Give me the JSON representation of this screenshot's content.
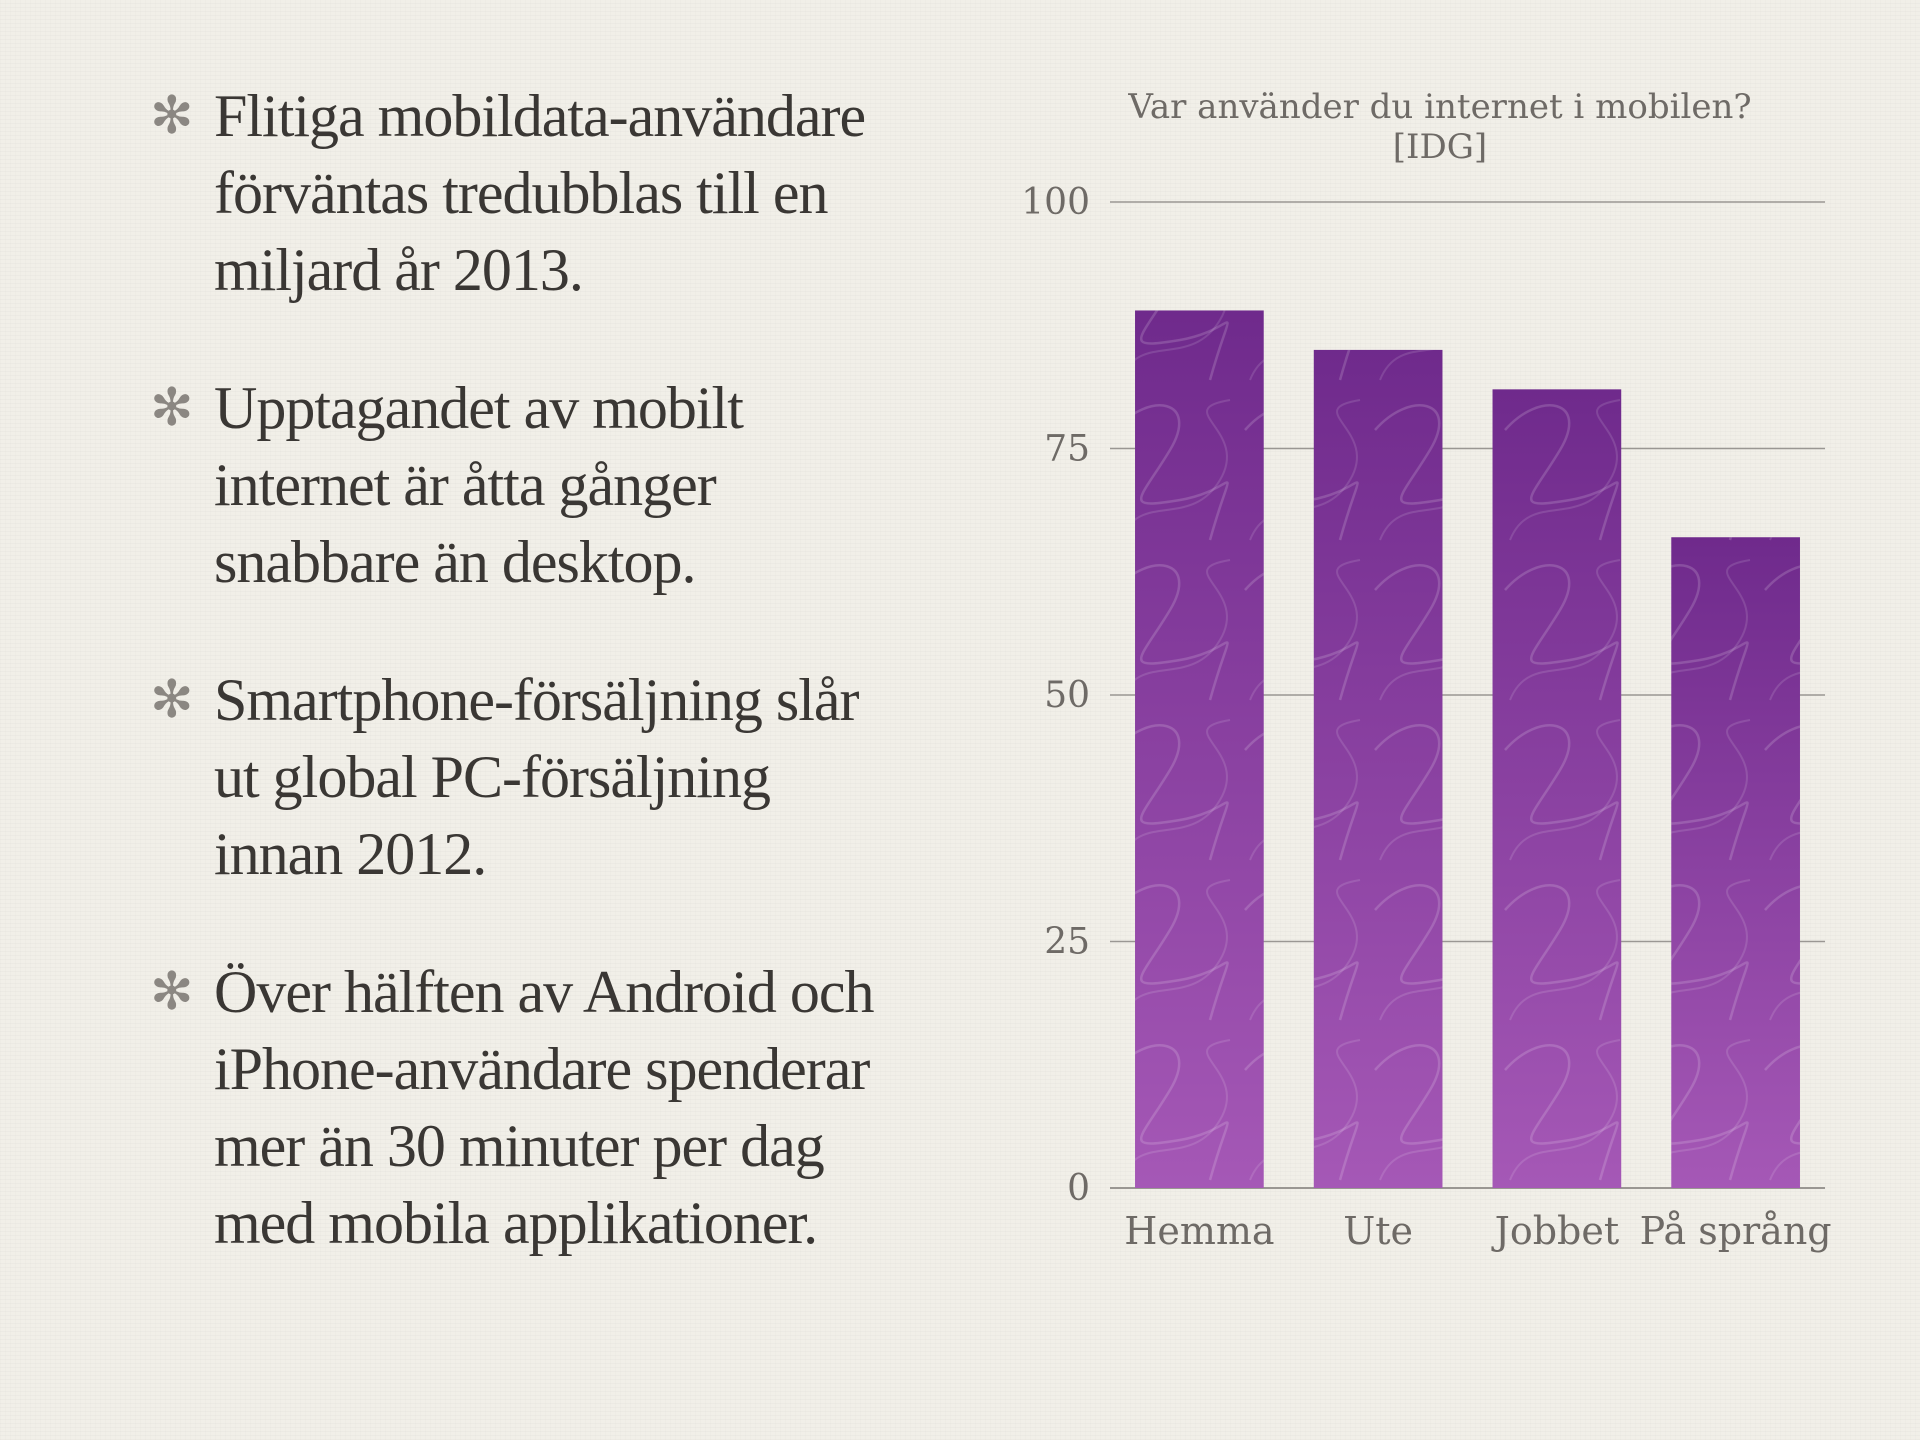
{
  "bullets": [
    {
      "icon": "asterisk-icon",
      "text": "Flitiga mobildata-användare förväntas tredubblas till en miljard år 2013."
    },
    {
      "icon": "asterisk-icon",
      "text": "Upptagandet av mobilt internet är åtta gånger snabbare än desktop."
    },
    {
      "icon": "asterisk-icon",
      "text": "Smartphone-försäljning slår ut global PC-försäljning innan 2012."
    },
    {
      "icon": "asterisk-icon",
      "text": "Över hälften av Android och iPhone-användare spenderar mer än 30 minuter per dag med mobila applikationer."
    }
  ],
  "bullet_glyph": "✻",
  "colors": {
    "background": "#f1efe8",
    "text": "#3a3734",
    "bar_top": "#6f2a8c",
    "bar_bottom": "#a558b6",
    "gridline": "#9a9793",
    "axis_label": "#6e6a66"
  },
  "chart_data": {
    "type": "bar",
    "title": [
      "Var använder du internet i mobilen?",
      "[IDG]"
    ],
    "categories": [
      "Hemma",
      "Ute",
      "Jobbet",
      "På språng"
    ],
    "values": [
      89,
      85,
      81,
      66
    ],
    "ylim": [
      0,
      100
    ],
    "yticks": [
      0,
      25,
      50,
      75,
      100
    ],
    "xlabel": "",
    "ylabel": "",
    "grid": true,
    "legend": "none"
  }
}
